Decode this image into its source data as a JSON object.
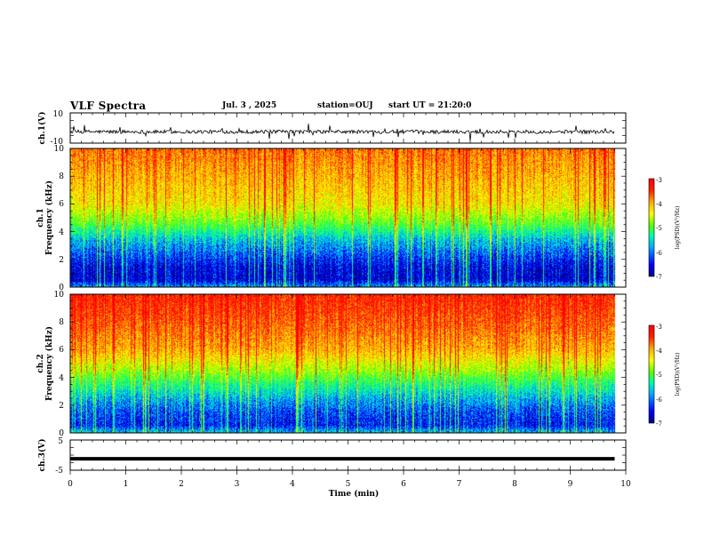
{
  "header": {
    "title": "VLF Spectra",
    "date": "Jul. 3 , 2025",
    "station": "station=OUJ",
    "start": "start UT = 21:20:0"
  },
  "colors": {
    "background": "#ffffff",
    "axes": "#000000",
    "waveform": "#000000",
    "colormap": [
      "#00007f",
      "#0000ff",
      "#00aaff",
      "#00ffaa",
      "#55ff00",
      "#ffff00",
      "#ffaa00",
      "#ff2200",
      "#ff0000"
    ]
  },
  "chart_data": [
    {
      "type": "line",
      "name": "ch1-waveform",
      "ylabel": "ch.1(V)",
      "ylim": [
        -10,
        10
      ],
      "yticks": [
        "10",
        "-10"
      ],
      "x_range_min": [
        0,
        9.8
      ],
      "baseline_v": -2.5,
      "noise_amplitude_v": 1.2,
      "spike_amplitude_v": 6
    },
    {
      "type": "heatmap",
      "name": "ch1-spectrogram",
      "ylabel_line1": "ch.1",
      "ylabel_line2": "Frequency (kHz)",
      "ylim": [
        0,
        10
      ],
      "yticks": [
        "0",
        "2",
        "4",
        "6",
        "8",
        "10"
      ],
      "x_range_min": [
        0,
        9.8
      ],
      "profile_log_psd": [
        [
          0,
          -6.0
        ],
        [
          0.5,
          -6.7
        ],
        [
          1.5,
          -6.6
        ],
        [
          2.5,
          -6.2
        ],
        [
          3.5,
          -5.8
        ],
        [
          4.5,
          -5.1
        ],
        [
          6.0,
          -4.4
        ],
        [
          8.0,
          -4.1
        ],
        [
          10,
          -3.8
        ]
      ],
      "colorbar": {
        "label": "log(PSD)(V²/Hz)",
        "range": [
          -7,
          -3
        ],
        "ticks": [
          "-3",
          "-4",
          "-5",
          "-6",
          "-7"
        ]
      }
    },
    {
      "type": "heatmap",
      "name": "ch2-spectrogram",
      "ylabel_line1": "ch.2",
      "ylabel_line2": "Frequency (kHz)",
      "ylim": [
        0,
        10
      ],
      "yticks": [
        "0",
        "2",
        "4",
        "6",
        "8",
        "10"
      ],
      "x_range_min": [
        0,
        9.8
      ],
      "profile_log_psd": [
        [
          0,
          -5.8
        ],
        [
          0.5,
          -6.5
        ],
        [
          1.5,
          -6.3
        ],
        [
          2.5,
          -5.9
        ],
        [
          3.5,
          -5.4
        ],
        [
          4.5,
          -4.8
        ],
        [
          6.0,
          -4.1
        ],
        [
          8.0,
          -3.7
        ],
        [
          10,
          -3.4
        ]
      ],
      "colorbar": {
        "label": "log(PSD)(V²/Hz)",
        "range": [
          -7,
          -3
        ],
        "ticks": [
          "-3",
          "-4",
          "-5",
          "-6",
          "-7"
        ]
      }
    },
    {
      "type": "line",
      "name": "ch3-waveform",
      "ylabel": "ch.3(V)",
      "ylim": [
        -5,
        5
      ],
      "yticks": [
        "5",
        "0",
        "-5"
      ],
      "x_range_min": [
        0,
        9.8
      ],
      "value_v": -1.2
    }
  ],
  "xaxis": {
    "label": "Time (min)",
    "xlim": [
      0,
      10
    ],
    "ticks": [
      "0",
      "1",
      "2",
      "3",
      "4",
      "5",
      "6",
      "7",
      "8",
      "9",
      "10"
    ]
  }
}
